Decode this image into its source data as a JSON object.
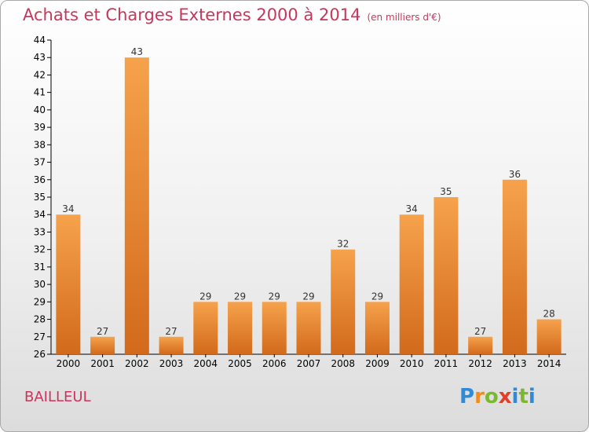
{
  "chart_data": {
    "type": "bar",
    "title": "Achats et Charges Externes 2000 à 2014",
    "subtitle": "(en milliers d'€)",
    "categories": [
      "2000",
      "2001",
      "2002",
      "2003",
      "2004",
      "2005",
      "2006",
      "2007",
      "2008",
      "2009",
      "2010",
      "2011",
      "2012",
      "2013",
      "2014"
    ],
    "values": [
      34,
      27,
      43,
      27,
      29,
      29,
      29,
      29,
      32,
      29,
      34,
      35,
      27,
      36,
      28
    ],
    "ylim": [
      26,
      44
    ],
    "yticks": [
      26,
      27,
      28,
      29,
      30,
      31,
      32,
      33,
      34,
      35,
      36,
      37,
      38,
      39,
      40,
      41,
      42,
      43,
      44
    ],
    "xlabel": "",
    "ylabel": "",
    "grid": false,
    "bar_color": "#f08c2a",
    "bar_color_dark": "#d0681a"
  },
  "location": "BAILLEUL",
  "logo": {
    "text": "Proxiti"
  },
  "colors": {
    "title": "#c8365c",
    "axis": "#000000"
  }
}
